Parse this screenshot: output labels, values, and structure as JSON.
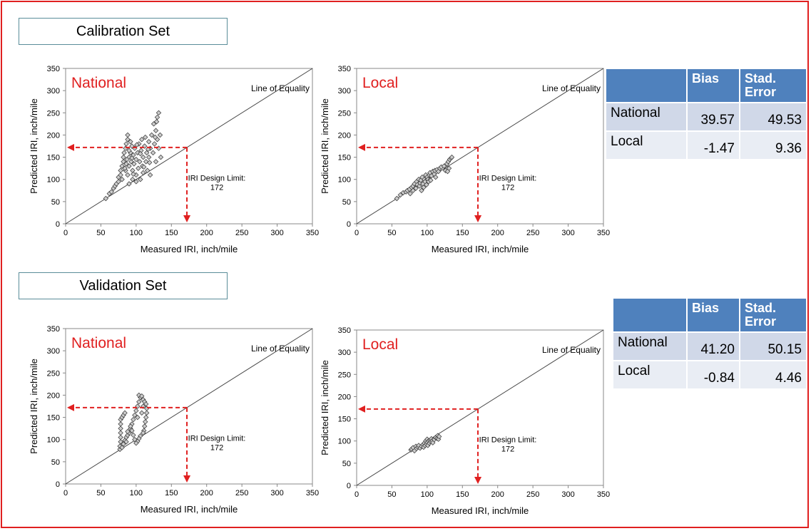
{
  "sections": [
    {
      "title": "Calibration Set",
      "table": {
        "headers": [
          "",
          "Bias",
          "Stad. Error"
        ],
        "rows": [
          {
            "label": "National",
            "bias": "39.57",
            "stderr": "49.53"
          },
          {
            "label": "Local",
            "bias": "-1.47",
            "stderr": "9.36"
          }
        ]
      }
    },
    {
      "title": "Validation Set",
      "table": {
        "headers": [
          "",
          "Bias",
          "Stad. Error"
        ],
        "rows": [
          {
            "label": "National",
            "bias": "41.20",
            "stderr": "50.15"
          },
          {
            "label": "Local",
            "bias": "-0.84",
            "stderr": "4.46"
          }
        ]
      }
    }
  ],
  "colors": {
    "frame": "#e02020",
    "arrow": "#e02020",
    "title": "#e02020",
    "header": "#4f81bd",
    "row1": "#d0d8e8",
    "row2": "#e9edf4",
    "marker_fill": "#cccccc",
    "marker_stroke": "#333333"
  },
  "chart_data": [
    {
      "type": "scatter",
      "title": "National",
      "xlabel": "Measured IRI, inch/mile",
      "ylabel": "Predicted IRI, inch/mile",
      "xlim": [
        0,
        350
      ],
      "ylim": [
        0,
        350
      ],
      "ticks": [
        0,
        50,
        100,
        150,
        200,
        250,
        300,
        350
      ],
      "equality_label": "Line of Equality",
      "limit_label": "IRI Design Limit:",
      "limit_value": 172,
      "points": [
        [
          57,
          57
        ],
        [
          62,
          68
        ],
        [
          65,
          72
        ],
        [
          68,
          80
        ],
        [
          70,
          85
        ],
        [
          72,
          90
        ],
        [
          75,
          95
        ],
        [
          75,
          105
        ],
        [
          78,
          110
        ],
        [
          78,
          120
        ],
        [
          80,
          100
        ],
        [
          80,
          130
        ],
        [
          82,
          140
        ],
        [
          82,
          150
        ],
        [
          83,
          160
        ],
        [
          85,
          120
        ],
        [
          85,
          170
        ],
        [
          86,
          180
        ],
        [
          88,
          190
        ],
        [
          88,
          200
        ],
        [
          88,
          110
        ],
        [
          90,
          150
        ],
        [
          90,
          130
        ],
        [
          90,
          90
        ],
        [
          92,
          160
        ],
        [
          93,
          140
        ],
        [
          94,
          175
        ],
        [
          95,
          120
        ],
        [
          95,
          100
        ],
        [
          96,
          155
        ],
        [
          97,
          135
        ],
        [
          98,
          170
        ],
        [
          100,
          110
        ],
        [
          100,
          145
        ],
        [
          100,
          95
        ],
        [
          102,
          160
        ],
        [
          103,
          125
        ],
        [
          104,
          180
        ],
        [
          105,
          140
        ],
        [
          106,
          100
        ],
        [
          107,
          165
        ],
        [
          108,
          190
        ],
        [
          109,
          130
        ],
        [
          110,
          150
        ],
        [
          110,
          115
        ],
        [
          112,
          175
        ],
        [
          113,
          195
        ],
        [
          114,
          140
        ],
        [
          115,
          160
        ],
        [
          116,
          120
        ],
        [
          118,
          185
        ],
        [
          118,
          150
        ],
        [
          120,
          110
        ],
        [
          120,
          170
        ],
        [
          122,
          200
        ],
        [
          124,
          160
        ],
        [
          125,
          225
        ],
        [
          126,
          180
        ],
        [
          128,
          210
        ],
        [
          128,
          140
        ],
        [
          130,
          240
        ],
        [
          130,
          190
        ],
        [
          132,
          250
        ],
        [
          132,
          170
        ],
        [
          134,
          200
        ],
        [
          135,
          150
        ],
        [
          90,
          165
        ],
        [
          92,
          185
        ],
        [
          87,
          145
        ],
        [
          84,
          125
        ],
        [
          96,
          112
        ],
        [
          101,
          178
        ],
        [
          111,
          128
        ],
        [
          119,
          138
        ],
        [
          127,
          195
        ],
        [
          129,
          230
        ],
        [
          86,
          135
        ],
        [
          94,
          148
        ],
        [
          106,
          158
        ],
        [
          117,
          168
        ]
      ]
    },
    {
      "type": "scatter",
      "title": "Local",
      "xlabel": "Measured IRI, inch/mile",
      "ylabel": "Predicted IRI, inch/mile",
      "xlim": [
        0,
        350
      ],
      "ylim": [
        0,
        350
      ],
      "ticks": [
        0,
        50,
        100,
        150,
        200,
        250,
        300,
        350
      ],
      "equality_label": "Line of Equality",
      "limit_label": "IRI Design Limit:",
      "limit_value": 172,
      "points": [
        [
          57,
          57
        ],
        [
          62,
          65
        ],
        [
          66,
          70
        ],
        [
          70,
          72
        ],
        [
          72,
          75
        ],
        [
          75,
          78
        ],
        [
          76,
          68
        ],
        [
          78,
          82
        ],
        [
          80,
          85
        ],
        [
          80,
          75
        ],
        [
          82,
          90
        ],
        [
          84,
          80
        ],
        [
          85,
          95
        ],
        [
          86,
          88
        ],
        [
          88,
          100
        ],
        [
          89,
          85
        ],
        [
          90,
          92
        ],
        [
          91,
          98
        ],
        [
          92,
          75
        ],
        [
          93,
          105
        ],
        [
          94,
          90
        ],
        [
          95,
          82
        ],
        [
          96,
          100
        ],
        [
          97,
          95
        ],
        [
          98,
          110
        ],
        [
          99,
          88
        ],
        [
          100,
          105
        ],
        [
          101,
          100
        ],
        [
          102,
          95
        ],
        [
          103,
          110
        ],
        [
          104,
          115
        ],
        [
          105,
          98
        ],
        [
          106,
          108
        ],
        [
          108,
          118
        ],
        [
          110,
          112
        ],
        [
          111,
          120
        ],
        [
          112,
          105
        ],
        [
          114,
          122
        ],
        [
          116,
          118
        ],
        [
          118,
          125
        ],
        [
          120,
          128
        ],
        [
          124,
          130
        ],
        [
          126,
          120
        ],
        [
          128,
          135
        ],
        [
          130,
          140
        ],
        [
          131,
          125
        ],
        [
          132,
          145
        ],
        [
          134,
          148
        ],
        [
          135,
          150
        ],
        [
          129,
          118
        ]
      ]
    },
    {
      "type": "scatter",
      "title": "National",
      "xlabel": "Measured IRI, inch/mile",
      "ylabel": "Predicted IRI, inch/mile",
      "xlim": [
        0,
        350
      ],
      "ylim": [
        0,
        350
      ],
      "ticks": [
        0,
        50,
        100,
        150,
        200,
        250,
        300,
        350
      ],
      "equality_label": "Line of Equality",
      "limit_label": "IRI Design Limit:",
      "limit_value": 172,
      "points": [
        [
          77,
          78
        ],
        [
          77,
          85
        ],
        [
          78,
          95
        ],
        [
          78,
          105
        ],
        [
          78,
          115
        ],
        [
          78,
          125
        ],
        [
          78,
          135
        ],
        [
          78,
          145
        ],
        [
          80,
          150
        ],
        [
          82,
          155
        ],
        [
          84,
          160
        ],
        [
          80,
          82
        ],
        [
          82,
          90
        ],
        [
          84,
          98
        ],
        [
          86,
          105
        ],
        [
          88,
          110
        ],
        [
          90,
          115
        ],
        [
          92,
          125
        ],
        [
          94,
          135
        ],
        [
          96,
          145
        ],
        [
          98,
          155
        ],
        [
          100,
          165
        ],
        [
          102,
          175
        ],
        [
          104,
          185
        ],
        [
          106,
          195
        ],
        [
          104,
          200
        ],
        [
          108,
          198
        ],
        [
          110,
          190
        ],
        [
          112,
          185
        ],
        [
          114,
          180
        ],
        [
          115,
          170
        ],
        [
          115,
          160
        ],
        [
          114,
          150
        ],
        [
          113,
          140
        ],
        [
          112,
          130
        ],
        [
          111,
          120
        ],
        [
          110,
          115
        ],
        [
          106,
          108
        ],
        [
          104,
          102
        ],
        [
          102,
          96
        ],
        [
          100,
          92
        ],
        [
          98,
          100
        ],
        [
          96,
          110
        ],
        [
          94,
          120
        ],
        [
          92,
          130
        ],
        [
          108,
          160
        ],
        [
          110,
          175
        ],
        [
          102,
          150
        ],
        [
          86,
          95
        ],
        [
          88,
          118
        ]
      ]
    },
    {
      "type": "scatter",
      "title": "Local",
      "xlabel": "Measured IRI, inch/mile",
      "ylabel": "Predicted IRI, inch/mile",
      "xlim": [
        0,
        350
      ],
      "ylim": [
        0,
        350
      ],
      "ticks": [
        0,
        50,
        100,
        150,
        200,
        250,
        300,
        350
      ],
      "equality_label": "Line of Equality",
      "limit_label": "IRI Design Limit:",
      "limit_value": 172,
      "points": [
        [
          77,
          80
        ],
        [
          78,
          82
        ],
        [
          80,
          85
        ],
        [
          82,
          78
        ],
        [
          84,
          88
        ],
        [
          85,
          83
        ],
        [
          87,
          86
        ],
        [
          88,
          90
        ],
        [
          90,
          84
        ],
        [
          92,
          88
        ],
        [
          94,
          92
        ],
        [
          95,
          86
        ],
        [
          96,
          95
        ],
        [
          97,
          90
        ],
        [
          98,
          100
        ],
        [
          99,
          93
        ],
        [
          100,
          97
        ],
        [
          100,
          104
        ],
        [
          101,
          90
        ],
        [
          102,
          100
        ],
        [
          103,
          95
        ],
        [
          104,
          102
        ],
        [
          105,
          98
        ],
        [
          106,
          105
        ],
        [
          107,
          100
        ],
        [
          108,
          96
        ],
        [
          110,
          103
        ],
        [
          112,
          108
        ],
        [
          114,
          106
        ],
        [
          115,
          112
        ],
        [
          116,
          104
        ],
        [
          117,
          110
        ]
      ]
    }
  ]
}
